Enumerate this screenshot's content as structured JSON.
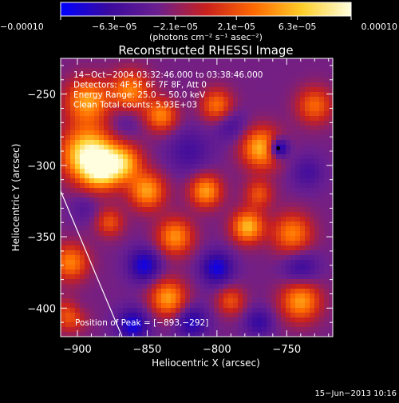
{
  "chart_data": {
    "type": "heatmap",
    "title": "Reconstructed RHESSI Image",
    "xlabel": "Heliocentric X (arcsec)",
    "ylabel": "Heliocentric Y (arcsec)",
    "xlim": [
      -912,
      -717
    ],
    "ylim": [
      -420,
      -225
    ],
    "xticks": [
      -900,
      -850,
      -800,
      -750
    ],
    "xtick_labels": [
      "−900",
      "−850",
      "−800",
      "−750"
    ],
    "yticks": [
      -250,
      -300,
      -350,
      -400
    ],
    "ytick_labels": [
      "−250",
      "−300",
      "−350",
      "−400"
    ],
    "colorbar": {
      "range": [
        -0.0001,
        0.0001
      ],
      "ticks": [
        -0.0001,
        -6.3e-05,
        -2.1e-05,
        2.1e-05,
        6.3e-05,
        0.0001
      ],
      "tick_labels": [
        "−0.00010",
        "−6.3e−05",
        "−2.1e−05",
        "2.1e−05",
        "6.3e−05",
        "0.00010"
      ],
      "unit_label": "(photons cm⁻² s⁻¹ asec⁻²)",
      "colors": [
        "#0000ff",
        "#3a0a9e",
        "#6b1f8f",
        "#c8201e",
        "#ff6a00",
        "#ffcf2a",
        "#ffffe0"
      ]
    },
    "info_lines": [
      "14−Oct−2004 03:32:46.000 to 03:38:46.000",
      "Detectors: 4F 5F 6F 7F 8F, Att 0",
      "Energy Range: 25.0 − 50.0 keV",
      "Clean    Total counts: 5.93E+03"
    ],
    "peak_label": "Position of Peak = [−893,−292]",
    "peak": [
      -893,
      -292
    ],
    "blobs": [
      {
        "x": -893,
        "y": -292,
        "value": 0.0001,
        "sigma": 13
      },
      {
        "x": -882,
        "y": -302,
        "value": 9e-05,
        "sigma": 10
      },
      {
        "x": -893,
        "y": -255,
        "value": 7e-05,
        "sigma": 11
      },
      {
        "x": -862,
        "y": -248,
        "value": 6e-05,
        "sigma": 10
      },
      {
        "x": -840,
        "y": -265,
        "value": 6e-05,
        "sigma": 8
      },
      {
        "x": -800,
        "y": -258,
        "value": 5.5e-05,
        "sigma": 8
      },
      {
        "x": -866,
        "y": -298,
        "value": 6e-05,
        "sigma": 9
      },
      {
        "x": -850,
        "y": -318,
        "value": 7e-05,
        "sigma": 9
      },
      {
        "x": -808,
        "y": -318,
        "value": 7e-05,
        "sigma": 8
      },
      {
        "x": -768,
        "y": -288,
        "value": 8e-05,
        "sigma": 10
      },
      {
        "x": -770,
        "y": -320,
        "value": 4e-05,
        "sigma": 7
      },
      {
        "x": -778,
        "y": -343,
        "value": 8e-05,
        "sigma": 8
      },
      {
        "x": -830,
        "y": -350,
        "value": 6.5e-05,
        "sigma": 9
      },
      {
        "x": -877,
        "y": -340,
        "value": 4e-05,
        "sigma": 7
      },
      {
        "x": -905,
        "y": -368,
        "value": 6e-05,
        "sigma": 9
      },
      {
        "x": -835,
        "y": -393,
        "value": 7e-05,
        "sigma": 9
      },
      {
        "x": -746,
        "y": -348,
        "value": 6e-05,
        "sigma": 10
      },
      {
        "x": -740,
        "y": -395,
        "value": 7e-05,
        "sigma": 10
      },
      {
        "x": -790,
        "y": -395,
        "value": 4e-05,
        "sigma": 7
      },
      {
        "x": -730,
        "y": -258,
        "value": 5e-05,
        "sigma": 9
      },
      {
        "x": -905,
        "y": -405,
        "value": 5e-05,
        "sigma": 8
      },
      {
        "x": -756,
        "y": -288,
        "value": -0.0001,
        "sigma": 5
      },
      {
        "x": -866,
        "y": -270,
        "value": -3e-05,
        "sigma": 8
      },
      {
        "x": -820,
        "y": -290,
        "value": -4e-05,
        "sigma": 11
      },
      {
        "x": -790,
        "y": -272,
        "value": -4e-05,
        "sigma": 8
      },
      {
        "x": -852,
        "y": -370,
        "value": -7e-05,
        "sigma": 8
      },
      {
        "x": -800,
        "y": -372,
        "value": -7e-05,
        "sigma": 8
      },
      {
        "x": -860,
        "y": -412,
        "value": -7e-05,
        "sigma": 8
      },
      {
        "x": -818,
        "y": -410,
        "value": -6e-05,
        "sigma": 8
      },
      {
        "x": -740,
        "y": -372,
        "value": -5e-05,
        "sigma": 9
      },
      {
        "x": -735,
        "y": -305,
        "value": -4e-05,
        "sigma": 8
      },
      {
        "x": -770,
        "y": -410,
        "value": -5e-05,
        "sigma": 7
      },
      {
        "x": -895,
        "y": -330,
        "value": -3e-05,
        "sigma": 7
      },
      {
        "x": -900,
        "y": -400,
        "value": -3e-05,
        "sigma": 6
      }
    ],
    "limb_line": [
      [
        -912,
        -318
      ],
      [
        -868,
        -420
      ]
    ],
    "background": -3e-05
  },
  "footer": {
    "date": "15−Jun−2013 10:16"
  }
}
